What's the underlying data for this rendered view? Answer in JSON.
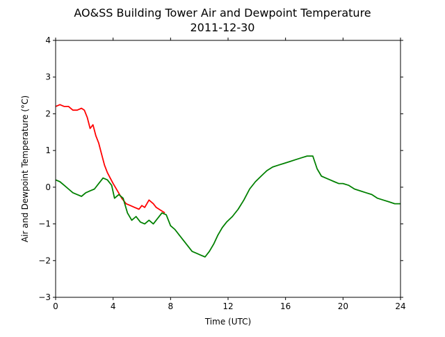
{
  "chart_data": {
    "type": "line",
    "title": "AO&SS Building Tower Air and Dewpoint Temperature",
    "subtitle": "2011-12-30",
    "xlabel": "Time (UTC)",
    "ylabel": "Air and Dewpoint Temperature (°C)",
    "xlim": [
      0,
      24
    ],
    "ylim": [
      -3,
      4
    ],
    "xticks": [
      0,
      4,
      8,
      12,
      16,
      20,
      24
    ],
    "yticks": [
      -3,
      -2,
      -1,
      0,
      1,
      2,
      3,
      4
    ],
    "grid": false,
    "series": [
      {
        "color": "#ff0000",
        "x": [
          0,
          0.3,
          0.6,
          0.9,
          1.2,
          1.5,
          1.8,
          2.0,
          2.2,
          2.4,
          2.6,
          2.8,
          3.0,
          3.2,
          3.4,
          3.6,
          3.8,
          4.0,
          4.3,
          4.6,
          4.9,
          5.2,
          5.5,
          5.8,
          6.0,
          6.2,
          6.5,
          6.8,
          7.0,
          7.2,
          7.4,
          7.6
        ],
        "y": [
          2.2,
          2.25,
          2.2,
          2.2,
          2.1,
          2.1,
          2.15,
          2.1,
          1.9,
          1.6,
          1.7,
          1.4,
          1.2,
          0.9,
          0.6,
          0.4,
          0.25,
          0.1,
          -0.1,
          -0.3,
          -0.45,
          -0.5,
          -0.55,
          -0.6,
          -0.5,
          -0.55,
          -0.35,
          -0.45,
          -0.55,
          -0.6,
          -0.65,
          -0.7
        ]
      },
      {
        "color": "#008000",
        "x": [
          0,
          0.3,
          0.6,
          0.9,
          1.2,
          1.5,
          1.8,
          2.1,
          2.4,
          2.7,
          3.0,
          3.3,
          3.6,
          3.9,
          4.1,
          4.4,
          4.7,
          5.0,
          5.3,
          5.6,
          5.9,
          6.2,
          6.5,
          6.8,
          7.1,
          7.4,
          7.7,
          8.0,
          8.3,
          8.6,
          8.9,
          9.2,
          9.5,
          9.8,
          10.1,
          10.4,
          10.7,
          11.0,
          11.3,
          11.6,
          11.9,
          12.3,
          12.7,
          13.1,
          13.5,
          13.9,
          14.3,
          14.7,
          15.1,
          15.5,
          15.9,
          16.3,
          16.7,
          17.1,
          17.5,
          17.9,
          18.2,
          18.5,
          18.8,
          19.1,
          19.4,
          19.7,
          20.0,
          20.4,
          20.8,
          21.2,
          21.6,
          22.0,
          22.4,
          22.8,
          23.2,
          23.6,
          24.0
        ],
        "y": [
          0.2,
          0.15,
          0.05,
          -0.05,
          -0.15,
          -0.2,
          -0.25,
          -0.15,
          -0.1,
          -0.05,
          0.1,
          0.25,
          0.2,
          0.05,
          -0.3,
          -0.2,
          -0.3,
          -0.7,
          -0.9,
          -0.8,
          -0.95,
          -1.0,
          -0.9,
          -1.0,
          -0.85,
          -0.7,
          -0.75,
          -1.05,
          -1.15,
          -1.3,
          -1.45,
          -1.6,
          -1.75,
          -1.8,
          -1.85,
          -1.9,
          -1.75,
          -1.55,
          -1.3,
          -1.1,
          -0.95,
          -0.8,
          -0.6,
          -0.35,
          -0.05,
          0.15,
          0.3,
          0.45,
          0.55,
          0.6,
          0.65,
          0.7,
          0.75,
          0.8,
          0.85,
          0.85,
          0.5,
          0.3,
          0.25,
          0.2,
          0.15,
          0.1,
          0.1,
          0.05,
          -0.05,
          -0.1,
          -0.15,
          -0.2,
          -0.3,
          -0.35,
          -0.4,
          -0.45,
          -0.45
        ]
      }
    ]
  }
}
